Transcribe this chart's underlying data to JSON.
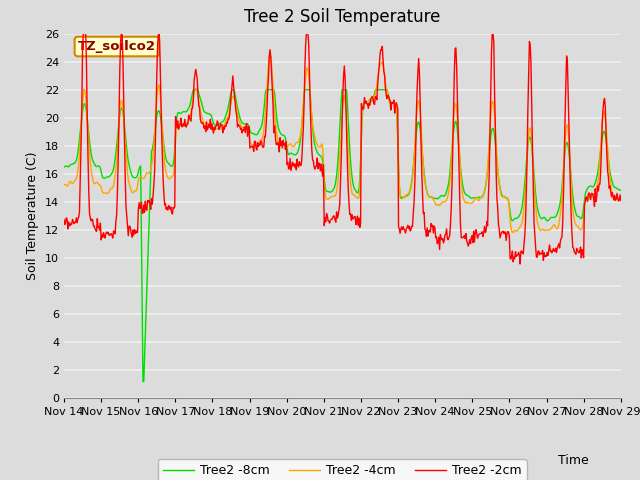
{
  "title": "Tree 2 Soil Temperature",
  "xlabel": "Time",
  "ylabel": "Soil Temperature (C)",
  "ylim": [
    0,
    26
  ],
  "xlim": [
    0,
    15
  ],
  "background_color": "#dcdcdc",
  "plot_bg_color": "#dcdcdc",
  "line_colors": {
    "2cm": "#ff0000",
    "4cm": "#ffa500",
    "8cm": "#00dd00"
  },
  "line_widths": {
    "2cm": 1.0,
    "4cm": 1.0,
    "8cm": 1.0
  },
  "legend_labels": [
    "Tree2 -2cm",
    "Tree2 -4cm",
    "Tree2 -8cm"
  ],
  "annotation_text": "TZ_soilco2",
  "annotation_bg": "#ffffcc",
  "annotation_border": "#cc8800",
  "xtick_labels": [
    "Nov 14",
    "Nov 15",
    "Nov 16",
    "Nov 17",
    "Nov 18",
    "Nov 19",
    "Nov 20",
    "Nov 21",
    "Nov 22",
    "Nov 23",
    "Nov 24",
    "Nov 25",
    "Nov 26",
    "Nov 27",
    "Nov 28",
    "Nov 29"
  ],
  "ytick_values": [
    0,
    2,
    4,
    6,
    8,
    10,
    12,
    14,
    16,
    18,
    20,
    22,
    24,
    26
  ],
  "title_fontsize": 12,
  "label_fontsize": 9,
  "tick_fontsize": 8,
  "legend_fontsize": 9,
  "grid_color": "#f0f0f0",
  "grid_linewidth": 1.2,
  "figsize": [
    6.4,
    4.8
  ],
  "dpi": 100
}
